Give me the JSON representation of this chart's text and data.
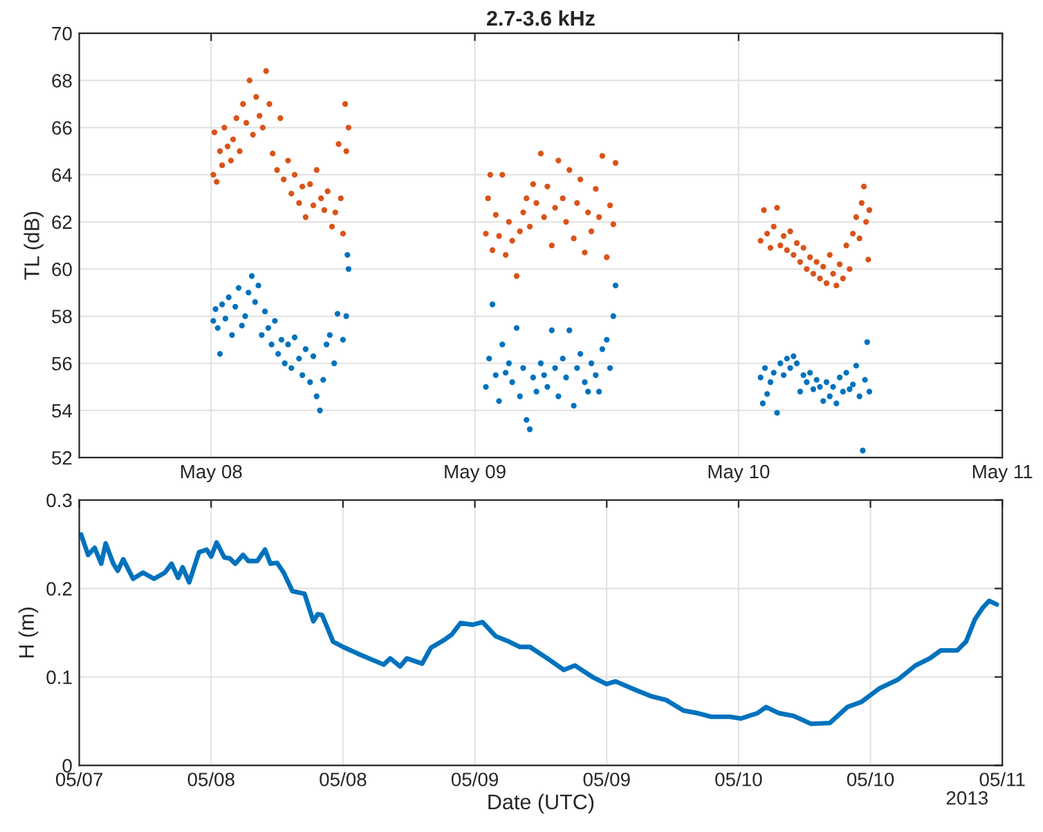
{
  "chart_data": [
    {
      "type": "scatter",
      "title": "2.7-3.6 kHz",
      "ylabel": "TL (dB)",
      "xlim": [
        "2013-05-07T12:00",
        "2013-05-11T00:00"
      ],
      "xticks": [
        {
          "value": "2013-05-08",
          "label": "May 08"
        },
        {
          "value": "2013-05-09",
          "label": "May 09"
        },
        {
          "value": "2013-05-10",
          "label": "May 10"
        },
        {
          "value": "2013-05-11",
          "label": "May 11"
        }
      ],
      "ylim": [
        52,
        70
      ],
      "yticks": [
        52,
        54,
        56,
        58,
        60,
        62,
        64,
        66,
        68,
        70
      ],
      "grid": true,
      "marker": "circle",
      "series": [
        {
          "color": "#d95319",
          "x": [
            "2013-05-08T00:12",
            "2013-05-08T00:18",
            "2013-05-08T00:30",
            "2013-05-08T00:48",
            "2013-05-08T01:00",
            "2013-05-08T01:12",
            "2013-05-08T01:30",
            "2013-05-08T01:48",
            "2013-05-08T02:00",
            "2013-05-08T02:18",
            "2013-05-08T02:36",
            "2013-05-08T02:54",
            "2013-05-08T03:12",
            "2013-05-08T03:30",
            "2013-05-08T03:48",
            "2013-05-08T04:06",
            "2013-05-08T04:24",
            "2013-05-08T04:42",
            "2013-05-08T05:00",
            "2013-05-08T05:18",
            "2013-05-08T05:36",
            "2013-05-08T06:00",
            "2013-05-08T06:18",
            "2013-05-08T06:36",
            "2013-05-08T07:00",
            "2013-05-08T07:18",
            "2013-05-08T07:36",
            "2013-05-08T08:00",
            "2013-05-08T08:18",
            "2013-05-08T08:36",
            "2013-05-08T09:00",
            "2013-05-08T09:18",
            "2013-05-08T09:36",
            "2013-05-08T10:00",
            "2013-05-08T10:18",
            "2013-05-08T10:36",
            "2013-05-08T11:00",
            "2013-05-08T11:18",
            "2013-05-08T11:36",
            "2013-05-08T11:48",
            "2013-05-08T12:00",
            "2013-05-08T12:12",
            "2013-05-08T12:18",
            "2013-05-08T12:30",
            "2013-05-09T01:00",
            "2013-05-09T01:12",
            "2013-05-09T01:24",
            "2013-05-09T01:36",
            "2013-05-09T01:54",
            "2013-05-09T02:12",
            "2013-05-09T02:30",
            "2013-05-09T02:48",
            "2013-05-09T03:06",
            "2013-05-09T03:24",
            "2013-05-09T03:48",
            "2013-05-09T04:06",
            "2013-05-09T04:24",
            "2013-05-09T04:42",
            "2013-05-09T05:00",
            "2013-05-09T05:18",
            "2013-05-09T05:36",
            "2013-05-09T06:00",
            "2013-05-09T06:18",
            "2013-05-09T06:36",
            "2013-05-09T07:00",
            "2013-05-09T07:18",
            "2013-05-09T07:36",
            "2013-05-09T08:00",
            "2013-05-09T08:18",
            "2013-05-09T08:36",
            "2013-05-09T09:00",
            "2013-05-09T09:18",
            "2013-05-09T09:36",
            "2013-05-09T10:00",
            "2013-05-09T10:18",
            "2013-05-09T10:36",
            "2013-05-09T11:00",
            "2013-05-09T11:18",
            "2013-05-09T11:36",
            "2013-05-09T12:00",
            "2013-05-09T12:18",
            "2013-05-09T12:36",
            "2013-05-09T12:48",
            "2013-05-10T02:00",
            "2013-05-10T02:18",
            "2013-05-10T02:36",
            "2013-05-10T02:54",
            "2013-05-10T03:12",
            "2013-05-10T03:30",
            "2013-05-10T03:48",
            "2013-05-10T04:06",
            "2013-05-10T04:24",
            "2013-05-10T04:42",
            "2013-05-10T05:00",
            "2013-05-10T05:18",
            "2013-05-10T05:36",
            "2013-05-10T05:54",
            "2013-05-10T06:12",
            "2013-05-10T06:30",
            "2013-05-10T06:48",
            "2013-05-10T07:06",
            "2013-05-10T07:24",
            "2013-05-10T07:42",
            "2013-05-10T08:00",
            "2013-05-10T08:18",
            "2013-05-10T08:36",
            "2013-05-10T08:54",
            "2013-05-10T09:12",
            "2013-05-10T09:30",
            "2013-05-10T09:48",
            "2013-05-10T10:06",
            "2013-05-10T10:24",
            "2013-05-10T10:42",
            "2013-05-10T11:00",
            "2013-05-10T11:12",
            "2013-05-10T11:24",
            "2013-05-10T11:36",
            "2013-05-10T11:48",
            "2013-05-10T11:54"
          ],
          "values": [
            64.0,
            65.8,
            63.7,
            65.0,
            64.4,
            66.0,
            65.2,
            64.6,
            65.5,
            66.4,
            65.0,
            67.0,
            66.2,
            68.0,
            65.7,
            67.3,
            66.5,
            66.0,
            68.4,
            67.0,
            64.9,
            64.2,
            66.4,
            63.8,
            64.6,
            63.2,
            64.0,
            62.8,
            63.5,
            62.2,
            63.6,
            62.7,
            64.2,
            63.0,
            62.5,
            63.3,
            61.8,
            62.4,
            65.3,
            63.0,
            61.5,
            67.0,
            65.0,
            66.0,
            61.5,
            63.0,
            64.0,
            60.8,
            62.3,
            61.4,
            64.0,
            60.6,
            62.0,
            61.2,
            59.7,
            61.6,
            62.4,
            63.0,
            61.8,
            63.6,
            62.8,
            64.9,
            62.2,
            63.5,
            61.0,
            62.6,
            64.6,
            63.0,
            62.0,
            64.2,
            61.3,
            62.8,
            63.8,
            60.7,
            62.4,
            61.6,
            63.4,
            62.2,
            64.8,
            60.5,
            62.7,
            61.9,
            64.5,
            61.2,
            62.5,
            61.5,
            60.9,
            61.8,
            62.6,
            61.0,
            61.4,
            60.8,
            61.6,
            60.6,
            61.1,
            60.3,
            60.9,
            60.0,
            60.5,
            59.8,
            60.3,
            59.6,
            60.1,
            59.4,
            60.6,
            59.8,
            59.3,
            60.2,
            59.6,
            61.0,
            60.0,
            61.5,
            62.2,
            61.3,
            62.8,
            63.5,
            62.0,
            60.4,
            62.5
          ]
        },
        {
          "color": "#0072bd",
          "x": [
            "2013-05-08T00:12",
            "2013-05-08T00:24",
            "2013-05-08T00:36",
            "2013-05-08T00:48",
            "2013-05-08T01:00",
            "2013-05-08T01:18",
            "2013-05-08T01:36",
            "2013-05-08T01:54",
            "2013-05-08T02:12",
            "2013-05-08T02:30",
            "2013-05-08T02:48",
            "2013-05-08T03:06",
            "2013-05-08T03:24",
            "2013-05-08T03:42",
            "2013-05-08T04:00",
            "2013-05-08T04:18",
            "2013-05-08T04:36",
            "2013-05-08T04:54",
            "2013-05-08T05:12",
            "2013-05-08T05:30",
            "2013-05-08T05:48",
            "2013-05-08T06:06",
            "2013-05-08T06:24",
            "2013-05-08T06:42",
            "2013-05-08T07:00",
            "2013-05-08T07:18",
            "2013-05-08T07:36",
            "2013-05-08T08:00",
            "2013-05-08T08:18",
            "2013-05-08T08:36",
            "2013-05-08T09:00",
            "2013-05-08T09:18",
            "2013-05-08T09:36",
            "2013-05-08T09:54",
            "2013-05-08T10:12",
            "2013-05-08T10:30",
            "2013-05-08T10:48",
            "2013-05-08T11:12",
            "2013-05-08T11:30",
            "2013-05-08T12:00",
            "2013-05-08T12:18",
            "2013-05-08T12:24",
            "2013-05-08T12:30",
            "2013-05-09T01:00",
            "2013-05-09T01:18",
            "2013-05-09T01:36",
            "2013-05-09T01:54",
            "2013-05-09T02:12",
            "2013-05-09T02:30",
            "2013-05-09T02:48",
            "2013-05-09T03:06",
            "2013-05-09T03:24",
            "2013-05-09T03:48",
            "2013-05-09T04:06",
            "2013-05-09T04:24",
            "2013-05-09T04:42",
            "2013-05-09T05:00",
            "2013-05-09T05:18",
            "2013-05-09T05:36",
            "2013-05-09T06:00",
            "2013-05-09T06:18",
            "2013-05-09T06:36",
            "2013-05-09T07:00",
            "2013-05-09T07:18",
            "2013-05-09T07:36",
            "2013-05-09T08:00",
            "2013-05-09T08:18",
            "2013-05-09T08:36",
            "2013-05-09T09:00",
            "2013-05-09T09:18",
            "2013-05-09T09:36",
            "2013-05-09T10:00",
            "2013-05-09T10:18",
            "2013-05-09T10:36",
            "2013-05-09T11:00",
            "2013-05-09T11:18",
            "2013-05-09T11:36",
            "2013-05-09T12:00",
            "2013-05-09T12:18",
            "2013-05-09T12:36",
            "2013-05-09T12:48",
            "2013-05-10T02:00",
            "2013-05-10T02:12",
            "2013-05-10T02:24",
            "2013-05-10T02:36",
            "2013-05-10T02:54",
            "2013-05-10T03:12",
            "2013-05-10T03:30",
            "2013-05-10T03:48",
            "2013-05-10T04:06",
            "2013-05-10T04:24",
            "2013-05-10T04:42",
            "2013-05-10T05:00",
            "2013-05-10T05:18",
            "2013-05-10T05:36",
            "2013-05-10T05:54",
            "2013-05-10T06:12",
            "2013-05-10T06:30",
            "2013-05-10T06:48",
            "2013-05-10T07:06",
            "2013-05-10T07:24",
            "2013-05-10T07:42",
            "2013-05-10T08:00",
            "2013-05-10T08:18",
            "2013-05-10T08:36",
            "2013-05-10T08:54",
            "2013-05-10T09:12",
            "2013-05-10T09:30",
            "2013-05-10T09:48",
            "2013-05-10T10:06",
            "2013-05-10T10:24",
            "2013-05-10T10:42",
            "2013-05-10T11:00",
            "2013-05-10T11:18",
            "2013-05-10T11:30",
            "2013-05-10T11:42",
            "2013-05-10T11:54"
          ],
          "values": [
            57.8,
            58.3,
            57.5,
            56.4,
            58.5,
            57.9,
            58.8,
            57.2,
            58.4,
            59.2,
            57.6,
            58.0,
            59.0,
            59.7,
            58.6,
            59.3,
            57.2,
            58.2,
            57.5,
            56.8,
            57.8,
            56.4,
            57.0,
            56.0,
            56.8,
            55.8,
            57.1,
            56.2,
            55.5,
            56.6,
            55.2,
            56.3,
            54.6,
            54.0,
            55.3,
            56.8,
            57.2,
            56.0,
            58.1,
            57.0,
            58.0,
            60.6,
            60.0,
            55.0,
            56.2,
            58.5,
            55.5,
            54.4,
            56.8,
            55.6,
            56.0,
            55.2,
            57.5,
            54.6,
            55.8,
            53.6,
            53.2,
            55.4,
            54.8,
            56.0,
            55.5,
            55.0,
            57.4,
            55.8,
            54.6,
            56.2,
            55.4,
            57.4,
            54.2,
            55.8,
            56.4,
            55.2,
            54.8,
            56.0,
            55.5,
            54.8,
            56.6,
            57.0,
            55.8,
            58.0,
            59.3,
            55.4,
            54.3,
            55.8,
            54.7,
            55.2,
            55.6,
            53.9,
            56.0,
            55.5,
            56.2,
            55.8,
            56.3,
            56.0,
            54.8,
            55.5,
            55.2,
            55.6,
            54.9,
            55.3,
            55.0,
            54.4,
            55.2,
            54.6,
            55.0,
            54.3,
            55.4,
            54.8,
            55.6,
            54.9,
            55.1,
            55.9,
            54.6,
            52.3,
            55.3,
            56.9,
            54.8
          ]
        }
      ]
    },
    {
      "type": "line",
      "xlabel": "Date (UTC)",
      "ylabel": "H (m)",
      "annotations": [
        "2013"
      ],
      "xlim": [
        "2013-05-07T12:00",
        "2013-05-11T00:00"
      ],
      "xticks": [
        {
          "value": "2013-05-07T12:00",
          "label": "05/07"
        },
        {
          "value": "2013-05-08T00:00",
          "label": "05/08"
        },
        {
          "value": "2013-05-08T12:00",
          "label": "05/08"
        },
        {
          "value": "2013-05-09T00:00",
          "label": "05/09"
        },
        {
          "value": "2013-05-09T12:00",
          "label": "05/09"
        },
        {
          "value": "2013-05-10T00:00",
          "label": "05/10"
        },
        {
          "value": "2013-05-10T12:00",
          "label": "05/10"
        },
        {
          "value": "2013-05-11T00:00",
          "label": "05/11"
        }
      ],
      "ylim": [
        0,
        0.3
      ],
      "yticks": [
        0,
        0.1,
        0.2,
        0.3
      ],
      "grid": true,
      "marker": "none",
      "line_style": "solid",
      "series": [
        {
          "color": "#0072bd",
          "x": [
            "2013-05-07T12:10",
            "2013-05-07T12:48",
            "2013-05-07T13:24",
            "2013-05-07T14:00",
            "2013-05-07T14:24",
            "2013-05-07T15:06",
            "2013-05-07T15:30",
            "2013-05-07T16:00",
            "2013-05-07T16:54",
            "2013-05-07T17:48",
            "2013-05-07T18:48",
            "2013-05-07T19:48",
            "2013-05-07T20:24",
            "2013-05-07T21:00",
            "2013-05-07T21:24",
            "2013-05-07T22:00",
            "2013-05-07T22:54",
            "2013-05-07T23:36",
            "2013-05-08T00:00",
            "2013-05-08T00:30",
            "2013-05-08T01:12",
            "2013-05-08T01:42",
            "2013-05-08T02:12",
            "2013-05-08T02:54",
            "2013-05-08T03:24",
            "2013-05-08T04:12",
            "2013-05-08T04:54",
            "2013-05-08T05:24",
            "2013-05-08T06:00",
            "2013-05-08T06:36",
            "2013-05-08T07:24",
            "2013-05-08T08:30",
            "2013-05-08T09:18",
            "2013-05-08T09:42",
            "2013-05-08T10:06",
            "2013-05-08T11:06",
            "2013-05-08T12:00",
            "2013-05-08T13:36",
            "2013-05-08T15:42",
            "2013-05-08T16:18",
            "2013-05-08T17:12",
            "2013-05-08T17:48",
            "2013-05-08T19:12",
            "2013-05-08T20:00",
            "2013-05-08T21:06",
            "2013-05-08T21:54",
            "2013-05-08T22:42",
            "2013-05-08T23:48",
            "2013-05-09T00:42",
            "2013-05-09T01:54",
            "2013-05-09T03:06",
            "2013-05-09T04:06",
            "2013-05-09T05:00",
            "2013-05-09T06:36",
            "2013-05-09T08:06",
            "2013-05-09T09:06",
            "2013-05-09T10:42",
            "2013-05-09T12:00",
            "2013-05-09T12:48",
            "2013-05-09T14:30",
            "2013-05-09T16:06",
            "2013-05-09T17:24",
            "2013-05-09T19:00",
            "2013-05-09T20:18",
            "2013-05-09T21:30",
            "2013-05-09T23:12",
            "2013-05-10T00:12",
            "2013-05-10T01:42",
            "2013-05-10T02:30",
            "2013-05-10T03:42",
            "2013-05-10T05:00",
            "2013-05-10T06:36",
            "2013-05-10T08:18",
            "2013-05-10T09:54",
            "2013-05-10T11:12",
            "2013-05-10T12:48",
            "2013-05-10T14:30",
            "2013-05-10T15:18",
            "2013-05-10T16:06",
            "2013-05-10T17:24",
            "2013-05-10T18:24",
            "2013-05-10T19:54",
            "2013-05-10T20:42",
            "2013-05-10T21:30",
            "2013-05-10T22:12",
            "2013-05-10T22:48",
            "2013-05-10T23:30"
          ],
          "values": [
            0.261,
            0.238,
            0.246,
            0.228,
            0.251,
            0.228,
            0.22,
            0.233,
            0.211,
            0.218,
            0.211,
            0.218,
            0.228,
            0.212,
            0.224,
            0.207,
            0.241,
            0.244,
            0.236,
            0.252,
            0.235,
            0.234,
            0.228,
            0.238,
            0.231,
            0.231,
            0.244,
            0.228,
            0.229,
            0.218,
            0.197,
            0.194,
            0.163,
            0.171,
            0.17,
            0.14,
            0.134,
            0.125,
            0.114,
            0.121,
            0.112,
            0.121,
            0.115,
            0.133,
            0.141,
            0.148,
            0.161,
            0.159,
            0.162,
            0.146,
            0.14,
            0.134,
            0.134,
            0.121,
            0.108,
            0.113,
            0.1,
            0.092,
            0.095,
            0.086,
            0.078,
            0.074,
            0.062,
            0.059,
            0.055,
            0.055,
            0.053,
            0.059,
            0.066,
            0.059,
            0.056,
            0.047,
            0.048,
            0.066,
            0.072,
            0.087,
            0.097,
            0.105,
            0.113,
            0.121,
            0.13,
            0.13,
            0.14,
            0.165,
            0.178,
            0.186,
            0.182
          ]
        }
      ]
    }
  ]
}
